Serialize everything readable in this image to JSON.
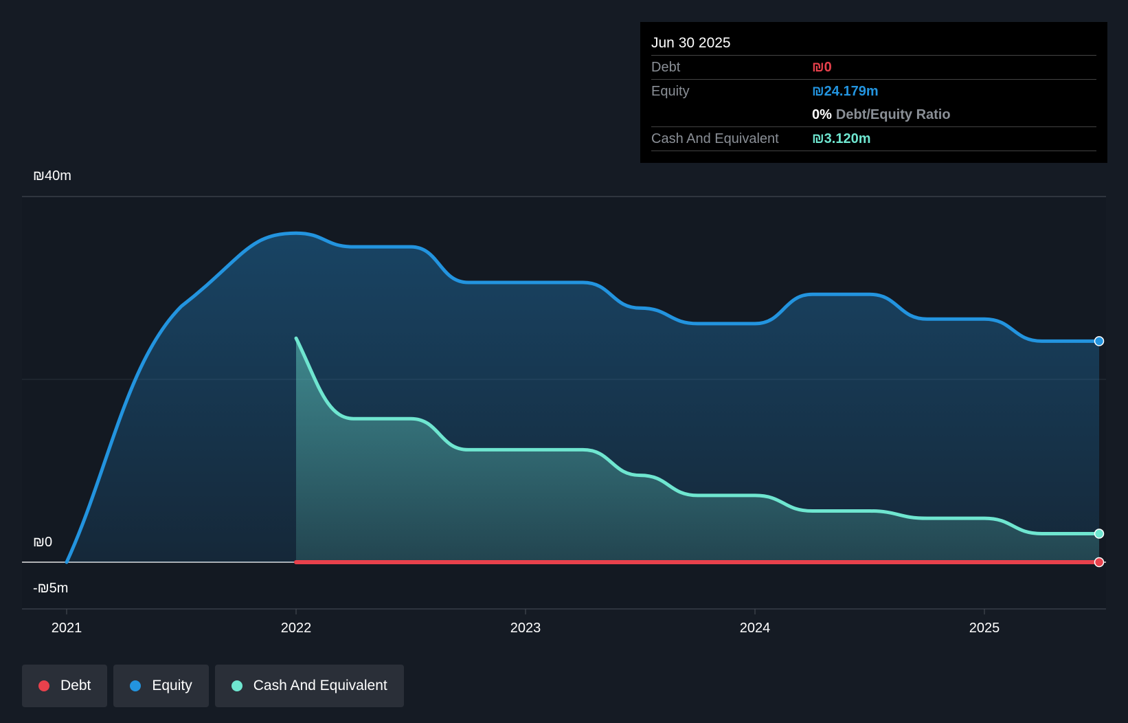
{
  "chart_data": {
    "type": "area",
    "currency_symbol": "₪",
    "x": [
      2021.0,
      2021.5,
      2022.0,
      2022.25,
      2022.5,
      2022.75,
      2023.0,
      2023.25,
      2023.5,
      2023.75,
      2024.0,
      2024.25,
      2024.5,
      2024.75,
      2025.0,
      2025.25,
      2025.5
    ],
    "series": [
      {
        "name": "Debt",
        "color": "#e8414c",
        "values": [
          null,
          null,
          0,
          0,
          0,
          0,
          0,
          0,
          0,
          0,
          0,
          0,
          0,
          0,
          0,
          0,
          0
        ]
      },
      {
        "name": "Equity",
        "color": "#2394df",
        "values": [
          0,
          28,
          36,
          34.5,
          34.5,
          30.6,
          30.6,
          30.6,
          27.8,
          26.1,
          26.1,
          29.3,
          29.3,
          26.6,
          26.6,
          24.179,
          24.179
        ]
      },
      {
        "name": "Cash And Equivalent",
        "color": "#6fe6d0",
        "values": [
          null,
          null,
          24.5,
          15.7,
          15.7,
          12.3,
          12.3,
          12.3,
          9.5,
          7.3,
          7.3,
          5.6,
          5.6,
          4.8,
          4.8,
          3.12,
          3.12
        ]
      }
    ],
    "yticks": [
      {
        "value": 40,
        "label": "₪40m"
      },
      {
        "value": 0,
        "label": "₪0"
      },
      {
        "value": -5,
        "label": "-₪5m"
      }
    ],
    "xticks": [
      {
        "value": 2021,
        "label": "2021"
      },
      {
        "value": 2022,
        "label": "2022"
      },
      {
        "value": 2023,
        "label": "2023"
      },
      {
        "value": 2024,
        "label": "2024"
      },
      {
        "value": 2025,
        "label": "2025"
      }
    ],
    "ylim": [
      -5,
      40
    ],
    "xlim": [
      2020.81,
      2025.5
    ]
  },
  "tooltip": {
    "date": "Jun 30 2025",
    "debt_label": "Debt",
    "debt_value": "₪0",
    "equity_label": "Equity",
    "equity_value": "₪24.179m",
    "ratio_value": "0%",
    "ratio_label": "Debt/Equity Ratio",
    "cash_label": "Cash And Equivalent",
    "cash_value": "₪3.120m"
  },
  "legend": [
    {
      "label": "Debt",
      "color": "#e8414c"
    },
    {
      "label": "Equity",
      "color": "#2394df"
    },
    {
      "label": "Cash And Equivalent",
      "color": "#6fe6d0"
    }
  ]
}
